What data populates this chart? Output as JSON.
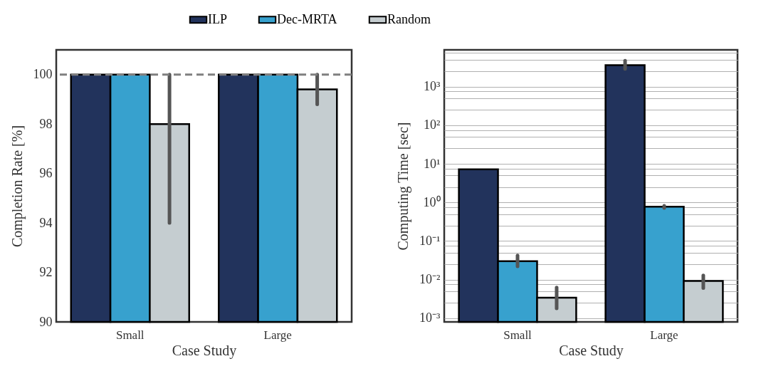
{
  "chart_data": [
    {
      "type": "bar",
      "xlabel": "Case Study",
      "ylabel": "Completion Rate [%]",
      "categories": [
        "Small",
        "Large"
      ],
      "series": [
        {
          "name": "ILP",
          "color": "#22335c",
          "values": [
            100,
            100
          ]
        },
        {
          "name": "Dec-MRTA",
          "color": "#37a1ce",
          "values": [
            100,
            100
          ]
        },
        {
          "name": "Random",
          "color": "#c5cdd0",
          "values": [
            98,
            99.4
          ],
          "errors": [
            [
              94,
              100
            ],
            [
              98.8,
              100
            ]
          ]
        }
      ],
      "ylim": [
        90,
        101
      ],
      "yticks": [
        90,
        92,
        94,
        96,
        98,
        100
      ],
      "grid": false,
      "legend": "top",
      "ref_lines": [
        {
          "axis": "y",
          "value": 100,
          "color": "#808080",
          "line_style": "dashed"
        }
      ]
    },
    {
      "type": "bar",
      "xlabel": "Case Study",
      "ylabel": "Computing Time [sec]",
      "categories": [
        "Small",
        "Large"
      ],
      "series": [
        {
          "name": "ILP",
          "color": "#22335c",
          "values": [
            7.2,
            3600
          ],
          "errors": [
            null,
            [
              2900,
              4700
            ]
          ]
        },
        {
          "name": "Dec-MRTA",
          "color": "#37a1ce",
          "values": [
            0.03,
            0.77
          ],
          "errors": [
            [
              0.022,
              0.042
            ],
            [
              0.72,
              0.82
            ]
          ]
        },
        {
          "name": "Random",
          "color": "#c5cdd0",
          "values": [
            0.0034,
            0.0092
          ],
          "errors": [
            [
              0.0018,
              0.0062
            ],
            [
              0.006,
              0.0128
            ]
          ]
        }
      ],
      "log": "y",
      "ylim": [
        0.0008,
        9000
      ],
      "grid": "y",
      "legend": "top",
      "yticks": [
        {
          "value": 0.001,
          "label": "10⁻³"
        },
        {
          "value": 0.0025,
          "label": null
        },
        {
          "value": 0.005,
          "label": null
        },
        {
          "value": 0.0075,
          "label": null
        },
        {
          "value": 0.01,
          "label": "10⁻²"
        },
        {
          "value": 0.025,
          "label": null
        },
        {
          "value": 0.05,
          "label": null
        },
        {
          "value": 0.075,
          "label": null
        },
        {
          "value": 0.1,
          "label": "10⁻¹"
        },
        {
          "value": 0.25,
          "label": null
        },
        {
          "value": 0.5,
          "label": null
        },
        {
          "value": 0.75,
          "label": null
        },
        {
          "value": 1,
          "label": "10⁰"
        },
        {
          "value": 2.5,
          "label": null
        },
        {
          "value": 5,
          "label": null
        },
        {
          "value": 7.5,
          "label": null
        },
        {
          "value": 10,
          "label": "10¹"
        },
        {
          "value": 25,
          "label": null
        },
        {
          "value": 50,
          "label": null
        },
        {
          "value": 75,
          "label": null
        },
        {
          "value": 100,
          "label": "10²"
        },
        {
          "value": 250,
          "label": null
        },
        {
          "value": 500,
          "label": null
        },
        {
          "value": 750,
          "label": null
        },
        {
          "value": 1000,
          "label": "10³"
        },
        {
          "value": 2500,
          "label": null
        },
        {
          "value": 5000,
          "label": null
        },
        {
          "value": 7500,
          "label": null
        }
      ]
    }
  ]
}
